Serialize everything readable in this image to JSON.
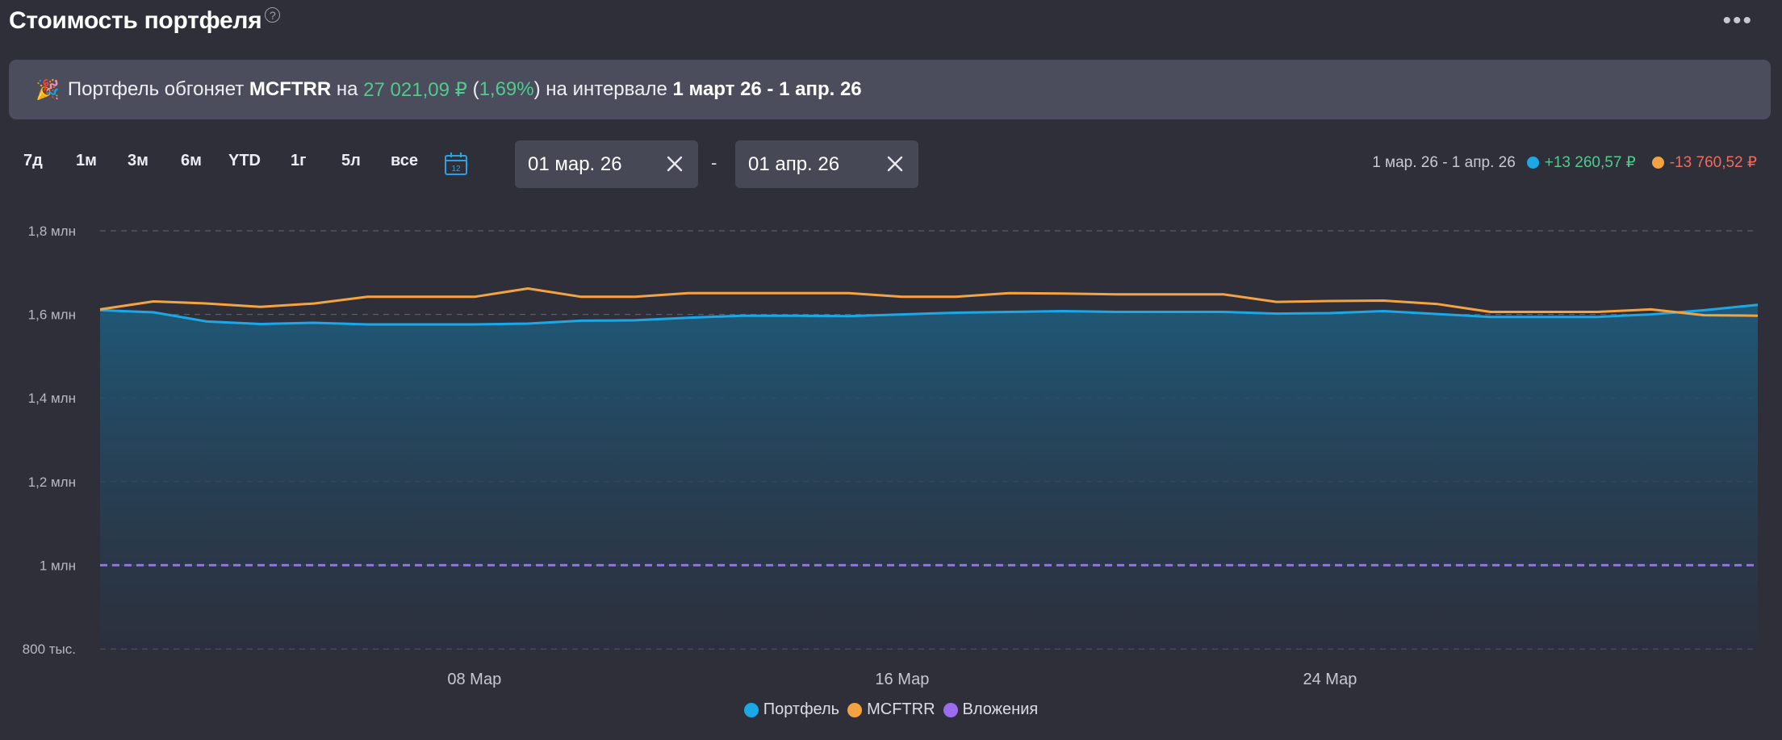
{
  "header": {
    "title": "Стоимость портфеля",
    "help_icon": "?",
    "more_icon": "•••"
  },
  "banner": {
    "icon": "🎉",
    "text_prefix": "Портфель обгоняет",
    "benchmark": "MCFTRR",
    "text_on": "на",
    "outperformance": "27 021,09 ₽",
    "paren_open": "(",
    "outperformance_pct": "1,69%",
    "paren_close": ")",
    "text_interval": "на интервале",
    "interval": "1 март 26 - 1 апр. 26"
  },
  "periods": [
    "7д",
    "1м",
    "3м",
    "6м",
    "YTD",
    "1г",
    "5л",
    "все"
  ],
  "date_range": {
    "from": "01 мар. 26",
    "separator": "-",
    "to": "01 апр. 26"
  },
  "summary": {
    "range": "1 мар. 26 - 1 апр. 26",
    "portfolio_change": "+13 260,57 ₽",
    "benchmark_change": "-13 760,52 ₽"
  },
  "colors": {
    "portfolio": "#1ba8e6",
    "benchmark": "#f5a340",
    "investments": "#9b6cf0",
    "positive": "#4ecb8d",
    "negative": "#ef6b5b"
  },
  "chart_data": {
    "type": "area",
    "ylim": [
      800000,
      1800000
    ],
    "yticks": [
      {
        "value": 1800000,
        "label": "1,8 млн"
      },
      {
        "value": 1600000,
        "label": "1,6 млн"
      },
      {
        "value": 1400000,
        "label": "1,4 млн"
      },
      {
        "value": 1200000,
        "label": "1,2 млн"
      },
      {
        "value": 1000000,
        "label": "1 млн"
      },
      {
        "value": 800000,
        "label": "800 тыс."
      }
    ],
    "x_start": "2026-03-01",
    "x_end": "2026-04-01",
    "xticks": [
      {
        "date": "2026-03-08",
        "label": "08 Мар"
      },
      {
        "date": "2026-03-16",
        "label": "16 Мар"
      },
      {
        "date": "2026-03-24",
        "label": "24 Мар"
      }
    ],
    "grid": true,
    "legend_position": "bottom",
    "series": [
      {
        "name": "Портфель",
        "color": "#1ba8e6",
        "fill": true,
        "points": [
          [
            "2026-03-01",
            1610000
          ],
          [
            "2026-03-02",
            1605000
          ],
          [
            "2026-03-03",
            1583000
          ],
          [
            "2026-03-04",
            1577000
          ],
          [
            "2026-03-05",
            1580000
          ],
          [
            "2026-03-06",
            1576000
          ],
          [
            "2026-03-07",
            1576000
          ],
          [
            "2026-03-08",
            1576000
          ],
          [
            "2026-03-09",
            1578000
          ],
          [
            "2026-03-10",
            1585000
          ],
          [
            "2026-03-11",
            1586000
          ],
          [
            "2026-03-12",
            1592000
          ],
          [
            "2026-03-13",
            1597000
          ],
          [
            "2026-03-14",
            1597000
          ],
          [
            "2026-03-15",
            1596000
          ],
          [
            "2026-03-16",
            1600000
          ],
          [
            "2026-03-17",
            1604000
          ],
          [
            "2026-03-18",
            1606000
          ],
          [
            "2026-03-19",
            1608000
          ],
          [
            "2026-03-20",
            1606000
          ],
          [
            "2026-03-21",
            1606000
          ],
          [
            "2026-03-22",
            1606000
          ],
          [
            "2026-03-23",
            1602000
          ],
          [
            "2026-03-24",
            1603000
          ],
          [
            "2026-03-25",
            1608000
          ],
          [
            "2026-03-26",
            1601000
          ],
          [
            "2026-03-27",
            1594000
          ],
          [
            "2026-03-28",
            1594000
          ],
          [
            "2026-03-29",
            1594000
          ],
          [
            "2026-03-30",
            1600000
          ],
          [
            "2026-03-31",
            1610000
          ],
          [
            "2026-04-01",
            1623000
          ]
        ]
      },
      {
        "name": "MCFTRR",
        "color": "#f5a340",
        "fill": false,
        "points": [
          [
            "2026-03-01",
            1612000
          ],
          [
            "2026-03-02",
            1631000
          ],
          [
            "2026-03-03",
            1626000
          ],
          [
            "2026-03-04",
            1618000
          ],
          [
            "2026-03-05",
            1626000
          ],
          [
            "2026-03-06",
            1642000
          ],
          [
            "2026-03-07",
            1642000
          ],
          [
            "2026-03-08",
            1642000
          ],
          [
            "2026-03-09",
            1662000
          ],
          [
            "2026-03-10",
            1642000
          ],
          [
            "2026-03-11",
            1642000
          ],
          [
            "2026-03-12",
            1651000
          ],
          [
            "2026-03-13",
            1651000
          ],
          [
            "2026-03-14",
            1651000
          ],
          [
            "2026-03-15",
            1651000
          ],
          [
            "2026-03-16",
            1642000
          ],
          [
            "2026-03-17",
            1642000
          ],
          [
            "2026-03-18",
            1651000
          ],
          [
            "2026-03-19",
            1650000
          ],
          [
            "2026-03-20",
            1648000
          ],
          [
            "2026-03-21",
            1648000
          ],
          [
            "2026-03-22",
            1648000
          ],
          [
            "2026-03-23",
            1630000
          ],
          [
            "2026-03-24",
            1632000
          ],
          [
            "2026-03-25",
            1633000
          ],
          [
            "2026-03-26",
            1625000
          ],
          [
            "2026-03-27",
            1606000
          ],
          [
            "2026-03-28",
            1606000
          ],
          [
            "2026-03-29",
            1606000
          ],
          [
            "2026-03-30",
            1612000
          ],
          [
            "2026-03-31",
            1598000
          ],
          [
            "2026-04-01",
            1597000
          ]
        ]
      },
      {
        "name": "Вложения",
        "color": "#9b6cf0",
        "fill": false,
        "dashed": true,
        "points": [
          [
            "2026-03-01",
            1000000
          ],
          [
            "2026-04-01",
            1000000
          ]
        ]
      }
    ]
  }
}
